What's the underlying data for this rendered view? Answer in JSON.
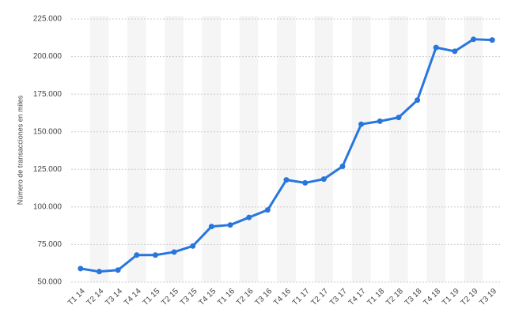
{
  "chart_data": {
    "type": "line",
    "y_label": "Número de transacciones en miles",
    "categories": [
      "T1 14",
      "T2 14",
      "T3 14",
      "T4 14",
      "T1 15",
      "T2 15",
      "T3 15",
      "T4 15",
      "T1 16",
      "T2 16",
      "T3 16",
      "T4 16",
      "T1 17",
      "T2 17",
      "T3 17",
      "T4 17",
      "T1 18",
      "T2 18",
      "T3 18",
      "T4 18",
      "T1 19",
      "T2 19",
      "T3 19"
    ],
    "values": [
      59000,
      57000,
      58000,
      68000,
      68000,
      70000,
      74000,
      87000,
      88000,
      93000,
      98000,
      118000,
      116000,
      118500,
      127000,
      155000,
      157000,
      159500,
      171000,
      206000,
      203500,
      211500,
      211000
    ],
    "color": "#2876dd",
    "ylim": [
      50000,
      225000
    ],
    "yticks": [
      {
        "value": 50000,
        "label": "50.000"
      },
      {
        "value": 75000,
        "label": "75.000"
      },
      {
        "value": 100000,
        "label": "100.000"
      },
      {
        "value": 125000,
        "label": "125.000"
      },
      {
        "value": 150000,
        "label": "150.000"
      },
      {
        "value": 175000,
        "label": "175.000"
      },
      {
        "value": 200000,
        "label": "200.000"
      },
      {
        "value": 225000,
        "label": "225.000"
      }
    ],
    "grid": true
  }
}
